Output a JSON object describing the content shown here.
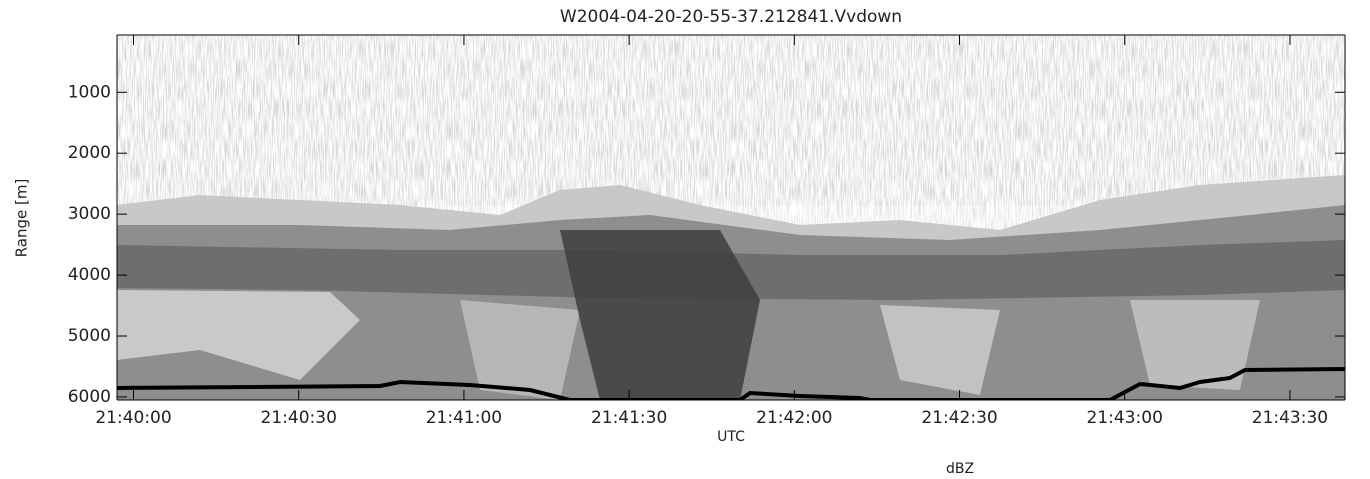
{
  "chart_data": {
    "type": "image",
    "title": "W2004-04-20-20-55-37.212841.Vvdown",
    "x_label": "UTC",
    "y_label": "Range [m]",
    "colorbar_label": "dBZ",
    "xlim": [
      77997,
      78220
    ],
    "xticks": [
      {
        "value": 78000,
        "label": "21:40:00"
      },
      {
        "value": 78030,
        "label": "21:40:30"
      },
      {
        "value": 78060,
        "label": "21:41:00"
      },
      {
        "value": 78090,
        "label": "21:41:30"
      },
      {
        "value": 78120,
        "label": "21:42:00"
      },
      {
        "value": 78150,
        "label": "21:42:30"
      },
      {
        "value": 78180,
        "label": "21:43:00"
      },
      {
        "value": 78210,
        "label": "21:43:30"
      }
    ],
    "ylim": [
      6050,
      60
    ],
    "yticks": [
      1000,
      2000,
      3000,
      4000,
      5000,
      6000
    ]
  }
}
